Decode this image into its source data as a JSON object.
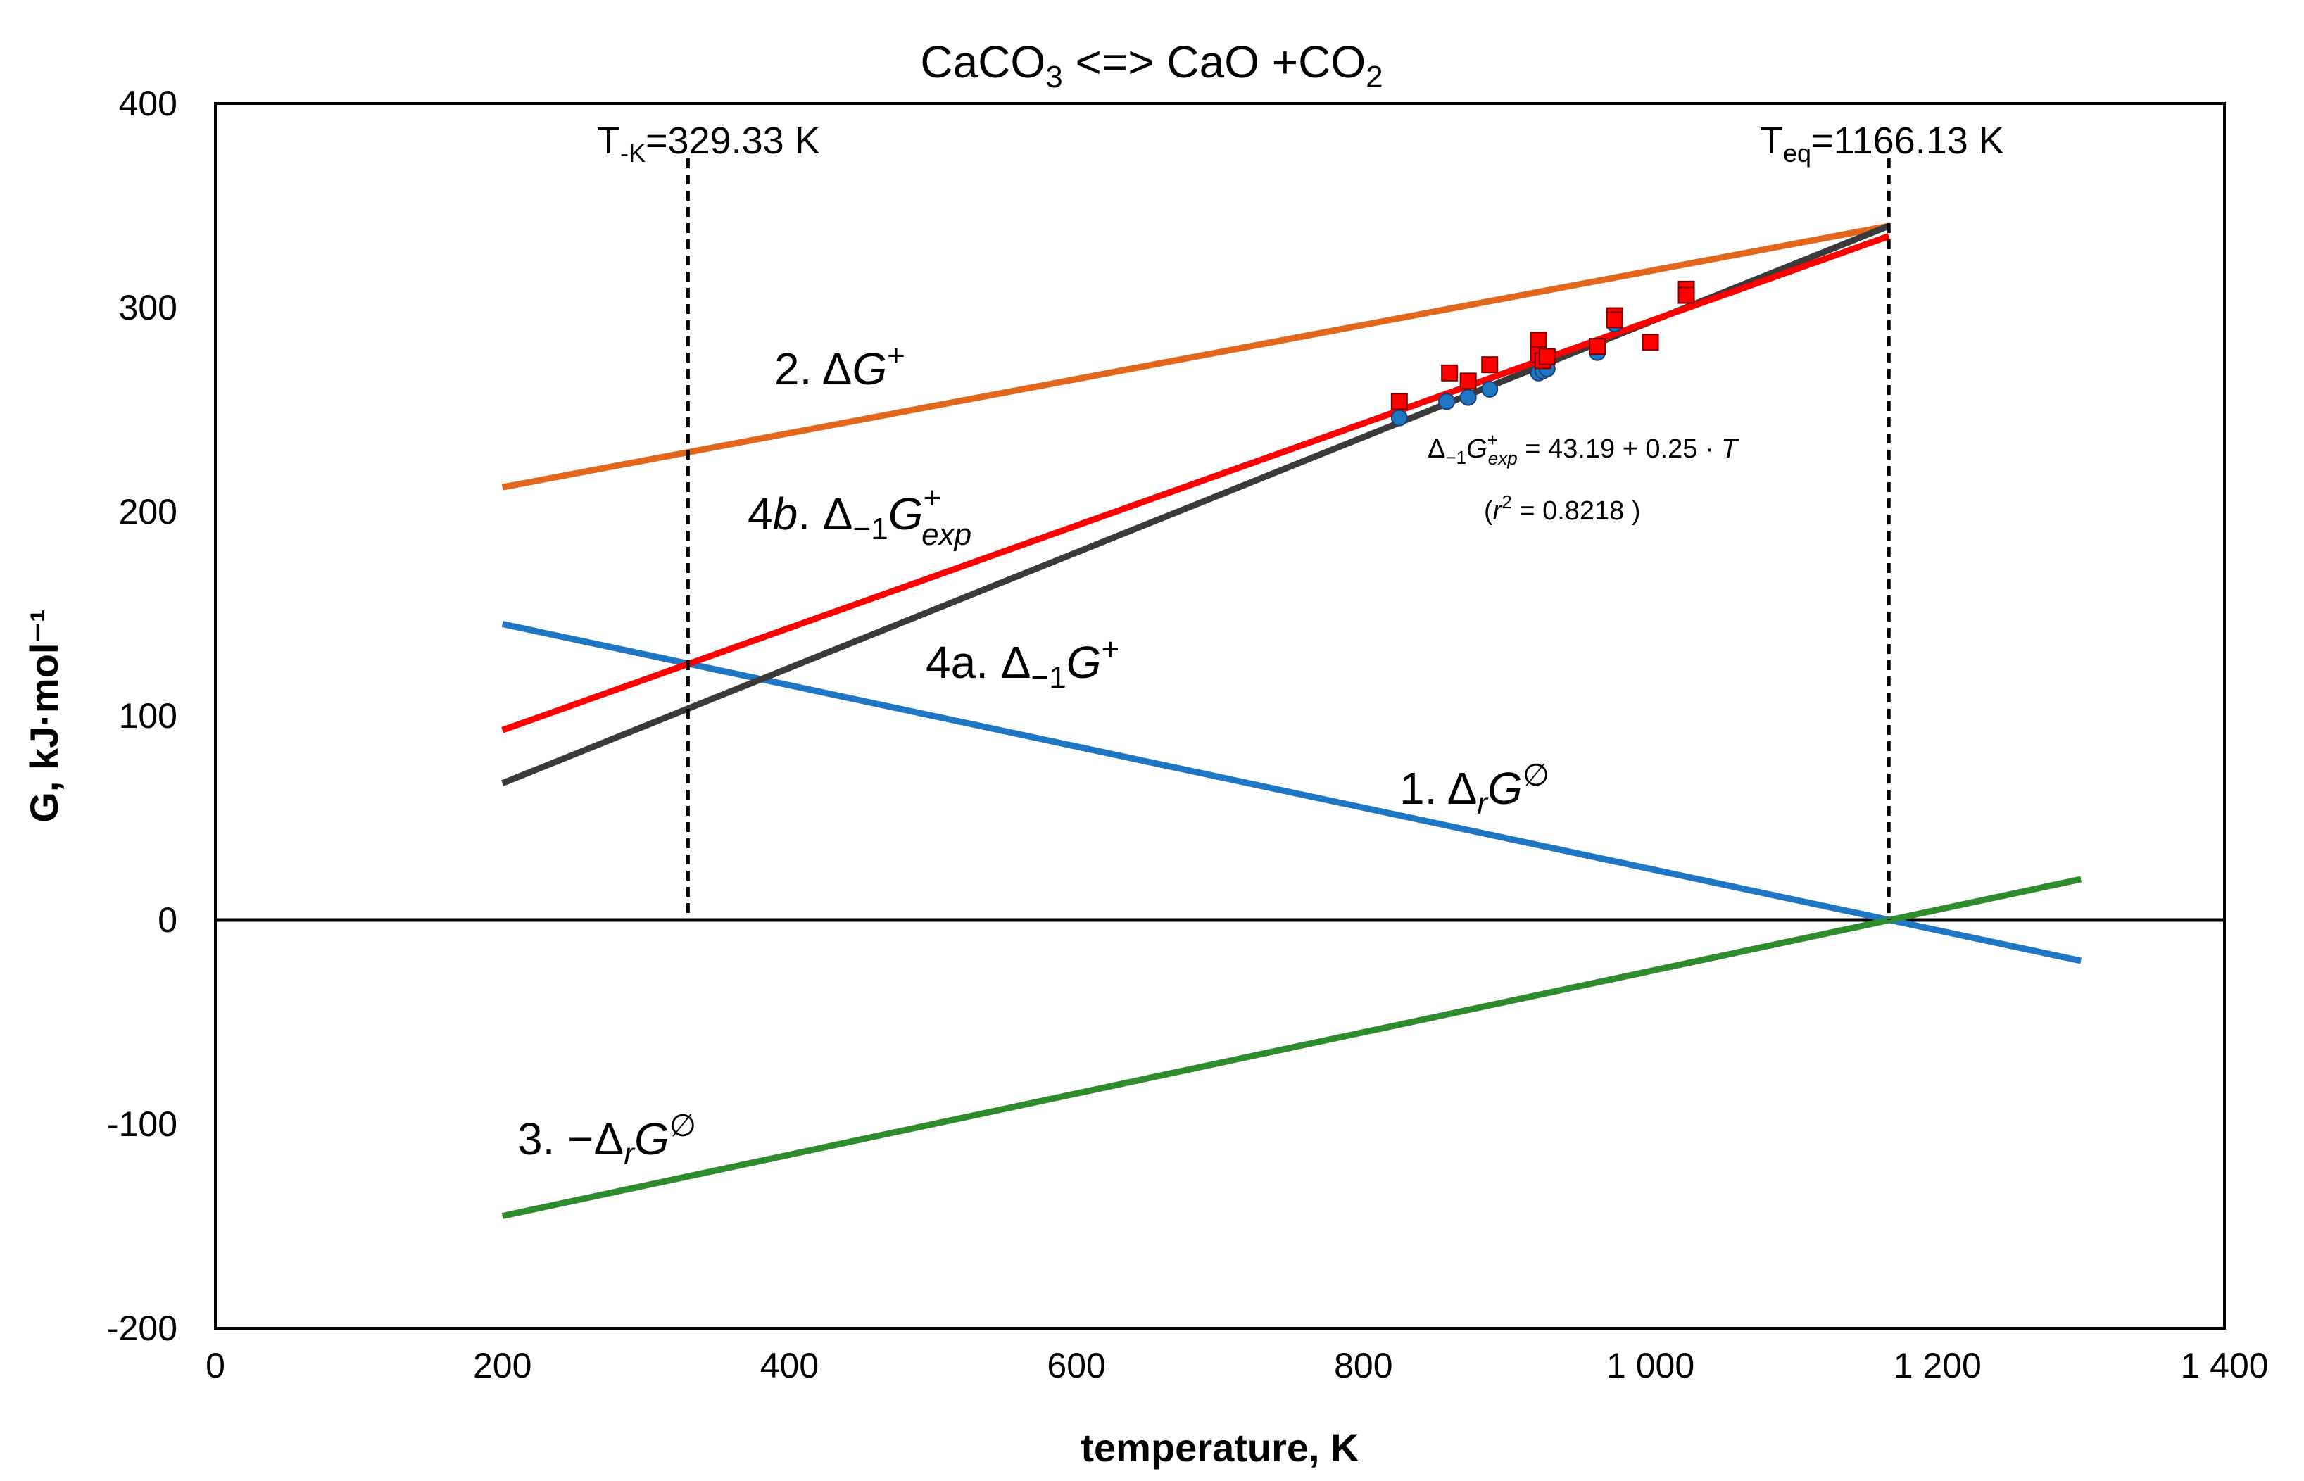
{
  "chart_data": {
    "type": "line",
    "title": {
      "main": "CaCO",
      "sub1": "3",
      "mid": " <=> CaO +CO",
      "sub2": "2"
    },
    "xlabel": "temperature, K",
    "ylabel": "G, kJ·mol⁻¹",
    "xlim": [
      0,
      1400
    ],
    "ylim": [
      -200,
      400
    ],
    "xticks": [
      0,
      200,
      400,
      600,
      800,
      1000,
      1200,
      1400
    ],
    "xtick_labels": [
      "0",
      "200",
      "400",
      "600",
      "800",
      "1 000",
      "1 200",
      "1 400"
    ],
    "yticks": [
      -200,
      -100,
      0,
      100,
      200,
      300,
      400
    ],
    "ytick_labels": [
      "-200",
      "-100",
      "0",
      "100",
      "200",
      "300",
      "400"
    ],
    "grid": false,
    "legend": "none",
    "colors": {
      "drG": "#1f77c4",
      "dGplus": "#e2661b",
      "minus_drG": "#2e8b2e",
      "d1Gplus": "#3a3a3a",
      "d1Gexp": "#ff0000",
      "axis": "#000000"
    },
    "series": [
      {
        "id": "drG",
        "name": "1. ΔrG∅",
        "x": [
          200,
          1300
        ],
        "y": [
          145,
          -20
        ]
      },
      {
        "id": "dGplus",
        "name": "2. ΔG+",
        "x": [
          200,
          1166.13
        ],
        "y": [
          212,
          340
        ]
      },
      {
        "id": "minus_drG",
        "name": "3. −ΔrG∅",
        "x": [
          200,
          1300
        ],
        "y": [
          -145,
          20
        ]
      },
      {
        "id": "d1Gplus",
        "name": "4a. Δ−1G+",
        "x": [
          200,
          1166.13
        ],
        "y": [
          67,
          340
        ]
      },
      {
        "id": "d1Gexp",
        "name": "4b. Δ−1G+exp",
        "x": [
          200,
          1166.13
        ],
        "y": [
          93,
          335
        ]
      }
    ],
    "scatter_squares": {
      "x": [
        825,
        860,
        873,
        888,
        922,
        922,
        925,
        928,
        963,
        975,
        975,
        1000,
        1025,
        1025
      ],
      "y": [
        254,
        268,
        264,
        272,
        284,
        277,
        274,
        276,
        281,
        296,
        294,
        283,
        309,
        306
      ]
    },
    "scatter_circles": {
      "x": [
        825,
        858,
        873,
        888,
        922,
        925,
        928,
        963,
        975,
        1025
      ],
      "y": [
        246,
        254,
        256,
        260,
        268,
        269,
        270,
        278,
        292,
        307
      ]
    },
    "vlines": [
      {
        "id": "tk",
        "x": 329.33,
        "label_main": "T",
        "label_sub": "-K",
        "label_rest": "=329.33 K"
      },
      {
        "id": "teq",
        "x": 1166.13,
        "label_main": "T",
        "label_sub": "eq",
        "label_rest": "=1166.13 K"
      }
    ],
    "annotations": {
      "curve1": {
        "prefix": "1. ",
        "sym": "Δ",
        "sub": "r",
        "var": "G",
        "sup": "∅"
      },
      "curve2": {
        "prefix": "2. ",
        "sym": "Δ",
        "var": "G",
        "sup": "+"
      },
      "curve3": {
        "prefix": "3. ",
        "sym": "−Δ",
        "sub": "r",
        "var": "G",
        "sup": "∅"
      },
      "curve4a": {
        "prefix": "4a. ",
        "sym": "Δ",
        "sub": "−1",
        "var": "G",
        "sup": "+"
      },
      "curve4b": {
        "prefix": "4",
        "prefix_var": "b",
        "dot": ". ",
        "sym": "Δ",
        "sub": "−1",
        "var": "G",
        "sup": "+",
        "sub2": "exp"
      },
      "regression": {
        "sym": "Δ",
        "sub": "−1",
        "var": "G",
        "sup": "+",
        "sub2": "exp",
        "rhs": " = 43.19 + 0.25 · ",
        "rhs_var": "T"
      },
      "r2": {
        "open": "(",
        "var": "r",
        "sup": "2",
        "rhs": " = 0.8218 )"
      }
    }
  }
}
